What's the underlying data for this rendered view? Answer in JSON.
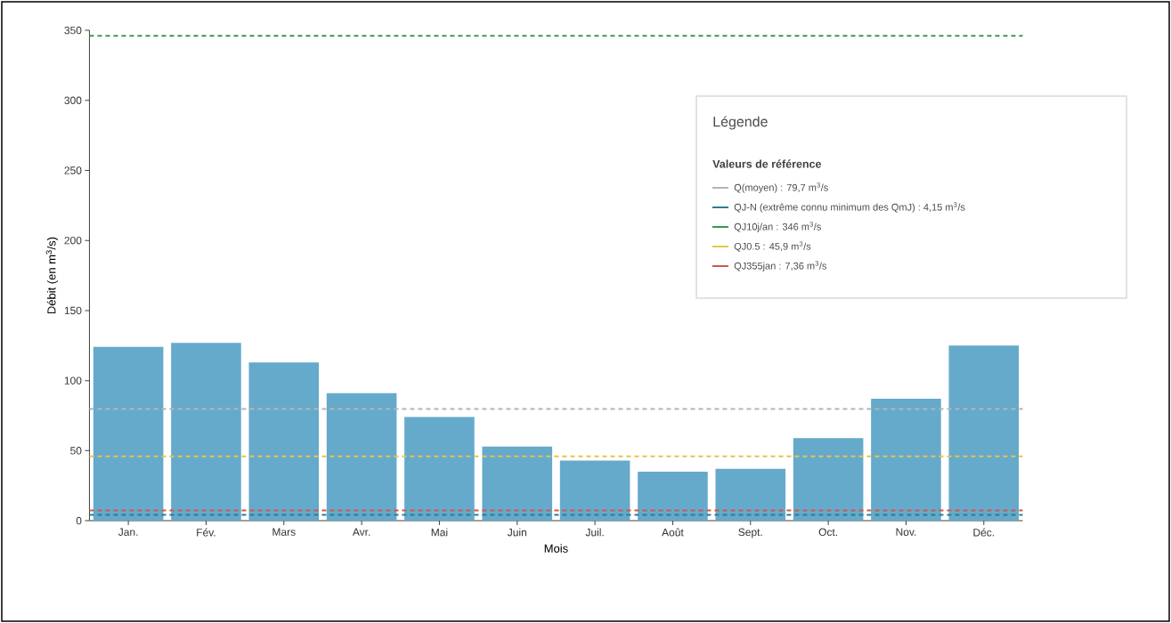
{
  "chart_data": {
    "type": "bar",
    "xlabel": "Mois",
    "ylabel": "Débit (en m$^{3}$/s)",
    "legend_title": "Légende",
    "annotations": [
      "Valeurs de référence"
    ],
    "categories": [
      "Jan.",
      "Fév.",
      "Mars",
      "Avr.",
      "Mai",
      "Juin",
      "Juil.",
      "Août",
      "Sept.",
      "Oct.",
      "Nov.",
      "Déc."
    ],
    "values": [
      124,
      127,
      113,
      91,
      74,
      53,
      43,
      35,
      37,
      59,
      87,
      125
    ],
    "color": "#65aacb",
    "ylim": [
      0,
      350
    ],
    "yticks": [
      0,
      50,
      100,
      150,
      200,
      250,
      300,
      350
    ],
    "ref_lines": [
      {
        "axis": "y",
        "value": 79.7,
        "label": "Q(moyen) : 79,7 m$^{3}$/s",
        "color": "#b4b4b4",
        "line_style": "dashed"
      },
      {
        "axis": "y",
        "value": 4.15,
        "label": "QJ-N (extrême connu minimum des QmJ) : 4,15 m$^{3}$/s",
        "color": "#2e7d8c",
        "line_style": "dashed"
      },
      {
        "axis": "y",
        "value": 346,
        "label": "QJ10j/an : 346 m$^{3}$/s",
        "color": "#3a9a4a",
        "line_style": "dashed"
      },
      {
        "axis": "y",
        "value": 45.9,
        "label": "QJ0.5 : 45,9 m$^{3}$/s",
        "color": "#e8c44a",
        "line_style": "dashed"
      },
      {
        "axis": "y",
        "value": 7.36,
        "label": "QJ355jan : 7,36 m$^{3}$/s",
        "color": "#d0584a",
        "line_style": "dashed"
      }
    ],
    "legend": "top right"
  }
}
